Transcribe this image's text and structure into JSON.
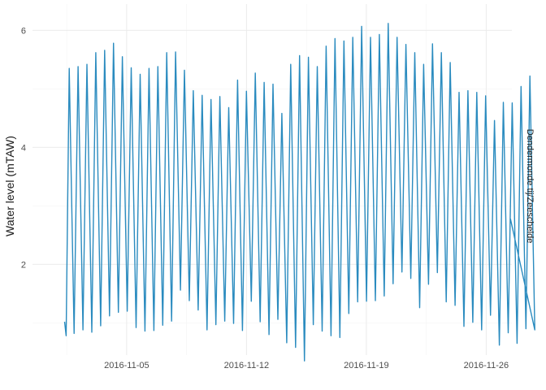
{
  "chart_data": {
    "type": "line",
    "title": "",
    "xlabel": "",
    "ylabel": "Water level (mTAW)",
    "facet_label": "Dendermonde tij/Zeeschelde",
    "x_range": [
      "2016-10-30T12:00",
      "2016-11-27T12:00"
    ],
    "ylim": [
      0.45,
      6.45
    ],
    "x_ticks": [
      {
        "value": "2016-11-05",
        "label": "2016-11-05"
      },
      {
        "value": "2016-11-12",
        "label": "2016-11-12"
      },
      {
        "value": "2016-11-19",
        "label": "2016-11-19"
      },
      {
        "value": "2016-11-26",
        "label": "2016-11-26"
      }
    ],
    "y_ticks": [
      2,
      4,
      6
    ],
    "grid": true,
    "legend": "none",
    "colors": {
      "series": "#2a8bbf"
    },
    "series": [
      {
        "start": "2016-11-01T09:00",
        "high_start": "2016-11-01T15:30",
        "highs": [
          5.35,
          5.38,
          5.42,
          5.62,
          5.66,
          5.78,
          5.55,
          5.36,
          5.25,
          5.35,
          5.38,
          5.62,
          5.63,
          5.32,
          4.97,
          4.89,
          4.82,
          4.87,
          4.68,
          5.15,
          4.96,
          5.27,
          5.11,
          5.08,
          4.58,
          5.42,
          5.57,
          5.54,
          5.38,
          5.73,
          5.86,
          5.82,
          5.88,
          6.07,
          5.88,
          5.93,
          6.12,
          5.88,
          5.76,
          5.62,
          5.42,
          5.77,
          5.62,
          5.45,
          4.94,
          4.97,
          4.94,
          4.88,
          4.46,
          4.77,
          4.76,
          5.04,
          5.22
        ],
        "lows": [
          0.82,
          0.88,
          0.84,
          0.95,
          1.12,
          1.18,
          1.2,
          0.92,
          0.86,
          0.87,
          0.96,
          1.03,
          1.56,
          1.38,
          1.22,
          0.88,
          0.97,
          1.03,
          0.99,
          0.87,
          1.37,
          1.02,
          0.8,
          1.06,
          0.66,
          0.58,
          0.35,
          0.97,
          0.86,
          0.78,
          0.75,
          1.16,
          1.36,
          1.37,
          1.38,
          1.46,
          1.67,
          1.87,
          1.76,
          1.26,
          1.66,
          1.86,
          1.36,
          1.3,
          0.94,
          1.01,
          0.88,
          1.13,
          0.62,
          0.83,
          0.65,
          0.9,
          0.88
        ],
        "end": "2016-11-27T10:00",
        "end_value": 2.78
      }
    ]
  }
}
